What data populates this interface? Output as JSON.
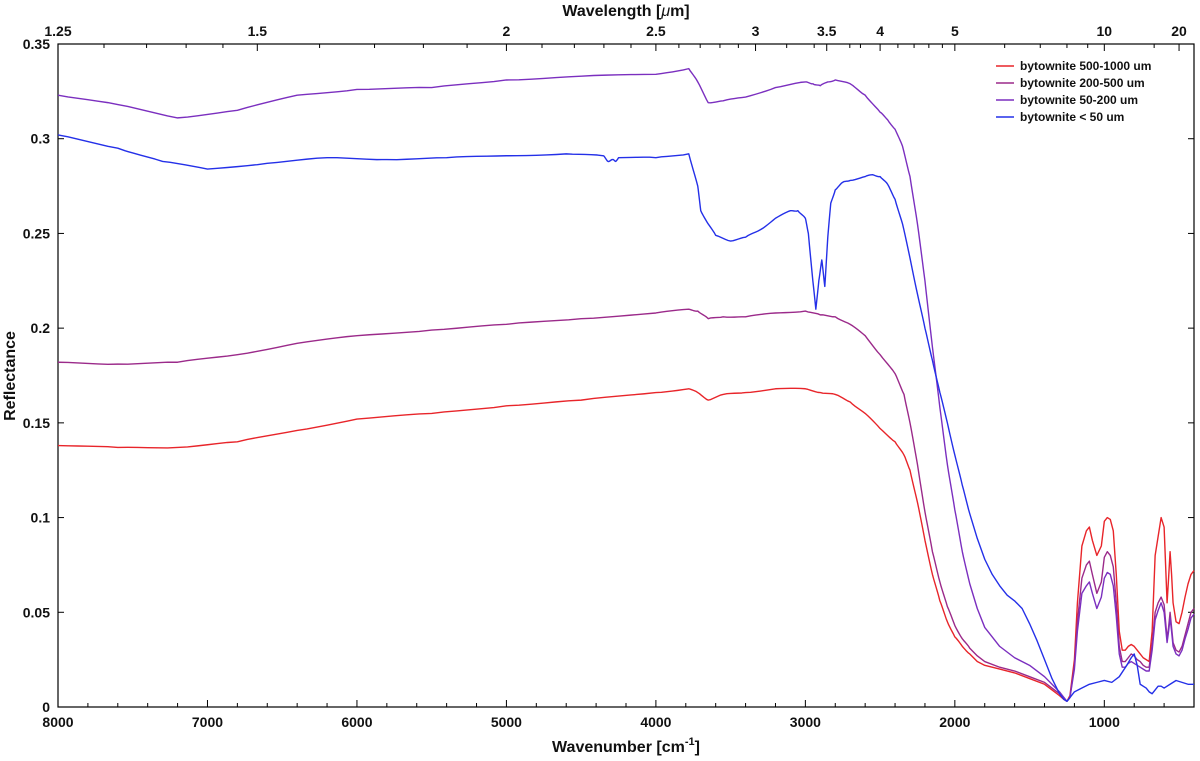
{
  "chart_data": {
    "type": "line",
    "xlabel": "Wavenumber [cm",
    "xlabel_sup": "-1",
    "xlabel_tail": "]",
    "ylabel": "Reflectance",
    "top_xlabel": "Wavelength [",
    "top_xlabel_mu": "μ",
    "top_xlabel_tail": "m]",
    "xlim": [
      8000,
      400
    ],
    "ylim": [
      0,
      0.35
    ],
    "x_axis_reversed": true,
    "x_ticks": [
      8000,
      7000,
      6000,
      5000,
      4000,
      3000,
      2000,
      1000
    ],
    "x_tick_labels": [
      "8000",
      "7000",
      "6000",
      "5000",
      "4000",
      "3000",
      "2000",
      "1000"
    ],
    "y_ticks": [
      0,
      0.05,
      0.1,
      0.15,
      0.2,
      0.25,
      0.3,
      0.35
    ],
    "y_tick_labels": [
      "0",
      "0.05",
      "0.1",
      "0.15",
      "0.2",
      "0.25",
      "0.3",
      "0.35"
    ],
    "top_ticks_um": [
      1.25,
      1.5,
      2,
      2.5,
      3,
      3.5,
      4,
      5,
      10,
      20
    ],
    "top_tick_labels": [
      "1.25",
      "1.5",
      "2",
      "2.5",
      "3",
      "3.5",
      "4",
      "5",
      "10",
      "20"
    ],
    "grid": false,
    "legend_position": "top-right",
    "series": [
      {
        "name": "bytownite 500-1000 um",
        "color": "#e8252a",
        "x": [
          8000,
          7600,
          7200,
          6800,
          6400,
          6000,
          5500,
          5000,
          4500,
          4000,
          3780,
          3720,
          3650,
          3550,
          3400,
          3200,
          3000,
          2900,
          2800,
          2700,
          2600,
          2500,
          2400,
          2340,
          2300,
          2250,
          2200,
          2150,
          2100,
          2050,
          2000,
          1950,
          1900,
          1850,
          1800,
          1700,
          1600,
          1500,
          1400,
          1350,
          1300,
          1270,
          1250,
          1230,
          1200,
          1180,
          1150,
          1120,
          1100,
          1080,
          1050,
          1020,
          1000,
          980,
          960,
          940,
          920,
          900,
          880,
          860,
          840,
          820,
          800,
          780,
          760,
          740,
          720,
          700,
          680,
          660,
          640,
          620,
          600,
          590,
          580,
          570,
          560,
          550,
          540,
          520,
          500,
          480,
          460,
          440,
          420,
          400
        ],
        "y": [
          0.138,
          0.137,
          0.137,
          0.14,
          0.146,
          0.152,
          0.155,
          0.159,
          0.162,
          0.166,
          0.168,
          0.166,
          0.162,
          0.165,
          0.166,
          0.168,
          0.168,
          0.166,
          0.165,
          0.161,
          0.155,
          0.147,
          0.14,
          0.133,
          0.125,
          0.108,
          0.088,
          0.07,
          0.056,
          0.045,
          0.037,
          0.032,
          0.028,
          0.024,
          0.022,
          0.02,
          0.018,
          0.015,
          0.012,
          0.009,
          0.006,
          0.004,
          0.003,
          0.006,
          0.025,
          0.055,
          0.085,
          0.093,
          0.095,
          0.088,
          0.08,
          0.085,
          0.098,
          0.1,
          0.099,
          0.093,
          0.07,
          0.04,
          0.03,
          0.03,
          0.032,
          0.033,
          0.032,
          0.03,
          0.028,
          0.026,
          0.025,
          0.024,
          0.04,
          0.08,
          0.09,
          0.1,
          0.095,
          0.075,
          0.055,
          0.068,
          0.082,
          0.07,
          0.055,
          0.045,
          0.044,
          0.05,
          0.058,
          0.065,
          0.07,
          0.072
        ]
      },
      {
        "name": "bytownite 200-500 um",
        "color": "#9b2a8a",
        "x": [
          8000,
          7600,
          7200,
          6800,
          6400,
          6000,
          5500,
          5000,
          4500,
          4000,
          3780,
          3720,
          3650,
          3550,
          3400,
          3200,
          3000,
          2900,
          2800,
          2700,
          2600,
          2500,
          2400,
          2340,
          2300,
          2250,
          2200,
          2150,
          2100,
          2050,
          2000,
          1950,
          1900,
          1850,
          1800,
          1700,
          1600,
          1500,
          1400,
          1350,
          1300,
          1270,
          1250,
          1230,
          1200,
          1180,
          1150,
          1120,
          1100,
          1080,
          1050,
          1020,
          1000,
          980,
          960,
          940,
          920,
          900,
          880,
          860,
          840,
          820,
          800,
          780,
          760,
          740,
          720,
          700,
          680,
          660,
          640,
          620,
          600,
          590,
          580,
          570,
          560,
          550,
          540,
          520,
          500,
          480,
          460,
          440,
          420,
          400
        ],
        "y": [
          0.182,
          0.181,
          0.182,
          0.186,
          0.192,
          0.196,
          0.199,
          0.202,
          0.205,
          0.208,
          0.21,
          0.209,
          0.205,
          0.206,
          0.206,
          0.208,
          0.209,
          0.207,
          0.206,
          0.202,
          0.196,
          0.186,
          0.176,
          0.165,
          0.15,
          0.128,
          0.103,
          0.082,
          0.066,
          0.053,
          0.043,
          0.036,
          0.031,
          0.027,
          0.024,
          0.021,
          0.019,
          0.016,
          0.013,
          0.01,
          0.007,
          0.004,
          0.003,
          0.005,
          0.022,
          0.045,
          0.068,
          0.075,
          0.077,
          0.07,
          0.06,
          0.066,
          0.079,
          0.082,
          0.08,
          0.074,
          0.055,
          0.032,
          0.024,
          0.024,
          0.026,
          0.028,
          0.027,
          0.025,
          0.024,
          0.022,
          0.021,
          0.021,
          0.033,
          0.05,
          0.055,
          0.058,
          0.054,
          0.045,
          0.036,
          0.042,
          0.05,
          0.042,
          0.034,
          0.03,
          0.029,
          0.032,
          0.038,
          0.044,
          0.05,
          0.052
        ]
      },
      {
        "name": "bytownite 50-200 um",
        "color": "#7b2fbf",
        "x": [
          8000,
          7600,
          7200,
          6800,
          6400,
          6000,
          5500,
          5000,
          4500,
          4000,
          3780,
          3720,
          3650,
          3550,
          3400,
          3200,
          3000,
          2950,
          2900,
          2850,
          2800,
          2700,
          2600,
          2500,
          2450,
          2400,
          2350,
          2300,
          2250,
          2200,
          2150,
          2100,
          2050,
          2000,
          1950,
          1900,
          1850,
          1800,
          1700,
          1600,
          1500,
          1400,
          1350,
          1300,
          1270,
          1250,
          1230,
          1200,
          1180,
          1150,
          1120,
          1100,
          1080,
          1050,
          1020,
          1000,
          980,
          960,
          940,
          920,
          900,
          880,
          860,
          840,
          820,
          800,
          780,
          760,
          740,
          720,
          700,
          680,
          660,
          640,
          620,
          600,
          590,
          580,
          570,
          560,
          550,
          540,
          520,
          500,
          480,
          460,
          440,
          420,
          400
        ],
        "y": [
          0.323,
          0.318,
          0.311,
          0.315,
          0.323,
          0.326,
          0.327,
          0.331,
          0.333,
          0.334,
          0.337,
          0.33,
          0.319,
          0.32,
          0.322,
          0.327,
          0.33,
          0.329,
          0.328,
          0.33,
          0.331,
          0.329,
          0.323,
          0.314,
          0.31,
          0.305,
          0.296,
          0.28,
          0.255,
          0.225,
          0.19,
          0.158,
          0.128,
          0.104,
          0.082,
          0.065,
          0.052,
          0.042,
          0.032,
          0.026,
          0.022,
          0.016,
          0.012,
          0.008,
          0.005,
          0.003,
          0.005,
          0.02,
          0.04,
          0.06,
          0.064,
          0.066,
          0.06,
          0.052,
          0.058,
          0.068,
          0.071,
          0.07,
          0.064,
          0.048,
          0.028,
          0.021,
          0.021,
          0.023,
          0.024,
          0.023,
          0.022,
          0.021,
          0.02,
          0.019,
          0.019,
          0.03,
          0.046,
          0.051,
          0.055,
          0.05,
          0.042,
          0.034,
          0.04,
          0.047,
          0.04,
          0.032,
          0.028,
          0.027,
          0.03,
          0.036,
          0.041,
          0.047,
          0.049
        ]
      },
      {
        "name": "bytownite < 50 um",
        "color": "#2430e8",
        "x": [
          8000,
          7600,
          7300,
          7000,
          6600,
          6200,
          5800,
          5400,
          5000,
          4600,
          4350,
          4320,
          4290,
          4270,
          4250,
          4000,
          3780,
          3720,
          3700,
          3650,
          3600,
          3500,
          3400,
          3300,
          3200,
          3100,
          3050,
          3000,
          2980,
          2950,
          2930,
          2910,
          2890,
          2870,
          2850,
          2830,
          2800,
          2750,
          2700,
          2600,
          2550,
          2500,
          2450,
          2400,
          2350,
          2300,
          2250,
          2200,
          2150,
          2100,
          2050,
          2000,
          1950,
          1900,
          1850,
          1800,
          1750,
          1700,
          1650,
          1600,
          1550,
          1500,
          1450,
          1400,
          1350,
          1300,
          1270,
          1250,
          1230,
          1200,
          1150,
          1100,
          1050,
          1000,
          950,
          900,
          850,
          820,
          800,
          780,
          760,
          720,
          700,
          680,
          660,
          640,
          620,
          600,
          560,
          520,
          480,
          440,
          400
        ],
        "y": [
          0.302,
          0.295,
          0.288,
          0.284,
          0.287,
          0.29,
          0.289,
          0.29,
          0.291,
          0.292,
          0.291,
          0.288,
          0.289,
          0.288,
          0.29,
          0.29,
          0.292,
          0.275,
          0.262,
          0.255,
          0.249,
          0.246,
          0.248,
          0.252,
          0.258,
          0.262,
          0.262,
          0.258,
          0.25,
          0.225,
          0.21,
          0.225,
          0.236,
          0.222,
          0.248,
          0.266,
          0.273,
          0.277,
          0.278,
          0.28,
          0.281,
          0.28,
          0.276,
          0.268,
          0.255,
          0.237,
          0.218,
          0.2,
          0.183,
          0.166,
          0.15,
          0.133,
          0.117,
          0.102,
          0.089,
          0.078,
          0.07,
          0.064,
          0.059,
          0.056,
          0.052,
          0.044,
          0.035,
          0.025,
          0.015,
          0.007,
          0.004,
          0.003,
          0.005,
          0.008,
          0.01,
          0.012,
          0.013,
          0.014,
          0.013,
          0.016,
          0.022,
          0.026,
          0.028,
          0.022,
          0.012,
          0.01,
          0.008,
          0.007,
          0.009,
          0.011,
          0.011,
          0.01,
          0.012,
          0.014,
          0.013,
          0.012,
          0.012
        ]
      }
    ]
  }
}
